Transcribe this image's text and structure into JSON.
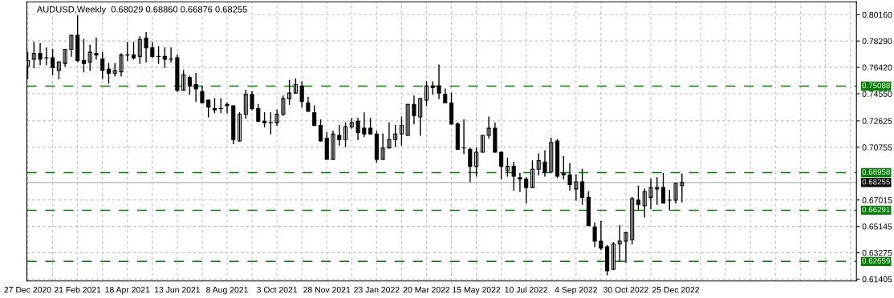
{
  "chart_data": {
    "type": "candlestick",
    "title": "AUDUSD,Weekly  0.68029 0.68860 0.66876 0.68255",
    "x": [
      "2020-12-27",
      "2021-01-03",
      "2021-01-10",
      "2021-01-17",
      "2021-01-24",
      "2021-01-31",
      "2021-02-07",
      "2021-02-14",
      "2021-02-21",
      "2021-02-28",
      "2021-03-07",
      "2021-03-14",
      "2021-03-21",
      "2021-03-28",
      "2021-04-04",
      "2021-04-11",
      "2021-04-18",
      "2021-04-25",
      "2021-05-02",
      "2021-05-09",
      "2021-05-16",
      "2021-05-23",
      "2021-05-30",
      "2021-06-06",
      "2021-06-13",
      "2021-06-20",
      "2021-06-27",
      "2021-07-04",
      "2021-07-11",
      "2021-07-18",
      "2021-07-25",
      "2021-08-01",
      "2021-08-08",
      "2021-08-15",
      "2021-08-22",
      "2021-08-29",
      "2021-09-05",
      "2021-09-12",
      "2021-09-19",
      "2021-09-26",
      "2021-10-03",
      "2021-10-10",
      "2021-10-17",
      "2021-10-24",
      "2021-10-31",
      "2021-11-07",
      "2021-11-14",
      "2021-11-21",
      "2021-11-28",
      "2021-12-05",
      "2021-12-12",
      "2021-12-19",
      "2021-12-26",
      "2022-01-02",
      "2022-01-09",
      "2022-01-16",
      "2022-01-23",
      "2022-01-30",
      "2022-02-06",
      "2022-02-13",
      "2022-02-20",
      "2022-02-27",
      "2022-03-06",
      "2022-03-13",
      "2022-03-20",
      "2022-03-27",
      "2022-04-03",
      "2022-04-10",
      "2022-04-17",
      "2022-04-24",
      "2022-05-01",
      "2022-05-08",
      "2022-05-15",
      "2022-05-22",
      "2022-05-29",
      "2022-06-05",
      "2022-06-12",
      "2022-06-19",
      "2022-06-26",
      "2022-07-03",
      "2022-07-10",
      "2022-07-17",
      "2022-07-24",
      "2022-07-31",
      "2022-08-07",
      "2022-08-14",
      "2022-08-21",
      "2022-08-28",
      "2022-09-04",
      "2022-09-11",
      "2022-09-18",
      "2022-09-25",
      "2022-10-02",
      "2022-10-09",
      "2022-10-16",
      "2022-10-23",
      "2022-10-30",
      "2022-11-06",
      "2022-11-13",
      "2022-11-20",
      "2022-11-27",
      "2022-12-04",
      "2022-12-11",
      "2022-12-18",
      "2022-12-25",
      "2023-01-01"
    ],
    "ohlc": [
      [
        0.765,
        0.775,
        0.756,
        0.769
      ],
      [
        0.77,
        0.782,
        0.764,
        0.774
      ],
      [
        0.774,
        0.781,
        0.766,
        0.77
      ],
      [
        0.771,
        0.778,
        0.766,
        0.771
      ],
      [
        0.771,
        0.777,
        0.759,
        0.764
      ],
      [
        0.762,
        0.768,
        0.756,
        0.768
      ],
      [
        0.767,
        0.777,
        0.765,
        0.777
      ],
      [
        0.777,
        0.787,
        0.772,
        0.787
      ],
      [
        0.787,
        0.801,
        0.768,
        0.769
      ],
      [
        0.769,
        0.784,
        0.761,
        0.767
      ],
      [
        0.768,
        0.78,
        0.762,
        0.775
      ],
      [
        0.774,
        0.785,
        0.77,
        0.773
      ],
      [
        0.77,
        0.775,
        0.756,
        0.762
      ],
      [
        0.763,
        0.767,
        0.753,
        0.76
      ],
      [
        0.76,
        0.767,
        0.758,
        0.762
      ],
      [
        0.761,
        0.774,
        0.758,
        0.773
      ],
      [
        0.773,
        0.782,
        0.769,
        0.773
      ],
      [
        0.773,
        0.782,
        0.77,
        0.771
      ],
      [
        0.772,
        0.786,
        0.767,
        0.784
      ],
      [
        0.785,
        0.789,
        0.768,
        0.778
      ],
      [
        0.778,
        0.782,
        0.771,
        0.772
      ],
      [
        0.772,
        0.779,
        0.767,
        0.772
      ],
      [
        0.772,
        0.778,
        0.764,
        0.77
      ],
      [
        0.77,
        0.778,
        0.768,
        0.77
      ],
      [
        0.771,
        0.773,
        0.747,
        0.748
      ],
      [
        0.748,
        0.762,
        0.748,
        0.759
      ],
      [
        0.757,
        0.758,
        0.745,
        0.751
      ],
      [
        0.752,
        0.76,
        0.74,
        0.749
      ],
      [
        0.747,
        0.751,
        0.739,
        0.739
      ],
      [
        0.741,
        0.741,
        0.729,
        0.736
      ],
      [
        0.735,
        0.742,
        0.732,
        0.734
      ],
      [
        0.735,
        0.742,
        0.732,
        0.735
      ],
      [
        0.738,
        0.739,
        0.732,
        0.737
      ],
      [
        0.737,
        0.737,
        0.71,
        0.713
      ],
      [
        0.712,
        0.732,
        0.712,
        0.731
      ],
      [
        0.731,
        0.748,
        0.728,
        0.745
      ],
      [
        0.745,
        0.747,
        0.734,
        0.735
      ],
      [
        0.735,
        0.738,
        0.726,
        0.726
      ],
      [
        0.726,
        0.732,
        0.722,
        0.725
      ],
      [
        0.725,
        0.732,
        0.717,
        0.725
      ],
      [
        0.725,
        0.734,
        0.723,
        0.731
      ],
      [
        0.731,
        0.744,
        0.73,
        0.742
      ],
      [
        0.742,
        0.755,
        0.738,
        0.746
      ],
      [
        0.746,
        0.756,
        0.746,
        0.752
      ],
      [
        0.751,
        0.754,
        0.736,
        0.74
      ],
      [
        0.739,
        0.743,
        0.733,
        0.733
      ],
      [
        0.732,
        0.737,
        0.723,
        0.723
      ],
      [
        0.723,
        0.727,
        0.712,
        0.712
      ],
      [
        0.714,
        0.718,
        0.699,
        0.699
      ],
      [
        0.699,
        0.719,
        0.699,
        0.717
      ],
      [
        0.716,
        0.723,
        0.709,
        0.713
      ],
      [
        0.713,
        0.725,
        0.708,
        0.722
      ],
      [
        0.722,
        0.728,
        0.721,
        0.725
      ],
      [
        0.726,
        0.728,
        0.713,
        0.718
      ],
      [
        0.721,
        0.732,
        0.715,
        0.717
      ],
      [
        0.721,
        0.728,
        0.717,
        0.717
      ],
      [
        0.717,
        0.719,
        0.697,
        0.699
      ],
      [
        0.699,
        0.717,
        0.699,
        0.707
      ],
      [
        0.707,
        0.725,
        0.707,
        0.713
      ],
      [
        0.713,
        0.723,
        0.708,
        0.717
      ],
      [
        0.717,
        0.729,
        0.709,
        0.723
      ],
      [
        0.716,
        0.738,
        0.716,
        0.738
      ],
      [
        0.738,
        0.744,
        0.724,
        0.73
      ],
      [
        0.729,
        0.742,
        0.716,
        0.742
      ],
      [
        0.741,
        0.754,
        0.737,
        0.751
      ],
      [
        0.751,
        0.754,
        0.745,
        0.75
      ],
      [
        0.751,
        0.766,
        0.742,
        0.746
      ],
      [
        0.745,
        0.749,
        0.739,
        0.739
      ],
      [
        0.739,
        0.746,
        0.724,
        0.724
      ],
      [
        0.724,
        0.725,
        0.706,
        0.706
      ],
      [
        0.707,
        0.727,
        0.703,
        0.707
      ],
      [
        0.706,
        0.707,
        0.683,
        0.694
      ],
      [
        0.694,
        0.707,
        0.687,
        0.704
      ],
      [
        0.704,
        0.716,
        0.704,
        0.716
      ],
      [
        0.716,
        0.729,
        0.714,
        0.721
      ],
      [
        0.721,
        0.725,
        0.704,
        0.704
      ],
      [
        0.704,
        0.704,
        0.685,
        0.694
      ],
      [
        0.691,
        0.7,
        0.687,
        0.694
      ],
      [
        0.694,
        0.697,
        0.677,
        0.687
      ],
      [
        0.686,
        0.689,
        0.676,
        0.685
      ],
      [
        0.685,
        0.686,
        0.668,
        0.679
      ],
      [
        0.679,
        0.698,
        0.679,
        0.692
      ],
      [
        0.692,
        0.703,
        0.688,
        0.698
      ],
      [
        0.697,
        0.705,
        0.687,
        0.69
      ],
      [
        0.69,
        0.714,
        0.69,
        0.711
      ],
      [
        0.712,
        0.713,
        0.686,
        0.687
      ],
      [
        0.689,
        0.701,
        0.685,
        0.688
      ],
      [
        0.688,
        0.696,
        0.677,
        0.681
      ],
      [
        0.678,
        0.688,
        0.67,
        0.683
      ],
      [
        0.683,
        0.692,
        0.667,
        0.672
      ],
      [
        0.672,
        0.676,
        0.652,
        0.652
      ],
      [
        0.651,
        0.654,
        0.637,
        0.641
      ],
      [
        0.641,
        0.655,
        0.635,
        0.636
      ],
      [
        0.637,
        0.638,
        0.617,
        0.62
      ],
      [
        0.621,
        0.64,
        0.621,
        0.639
      ],
      [
        0.639,
        0.652,
        0.627,
        0.641
      ],
      [
        0.641,
        0.647,
        0.626,
        0.647
      ],
      [
        0.642,
        0.672,
        0.639,
        0.671
      ],
      [
        0.67,
        0.68,
        0.663,
        0.667
      ],
      [
        0.666,
        0.678,
        0.658,
        0.676
      ],
      [
        0.672,
        0.685,
        0.664,
        0.679
      ],
      [
        0.678,
        0.686,
        0.667,
        0.679
      ],
      [
        0.679,
        0.689,
        0.668,
        0.668
      ],
      [
        0.67,
        0.677,
        0.663,
        0.67
      ],
      [
        0.67,
        0.682,
        0.668,
        0.682
      ],
      [
        0.68029,
        0.6886,
        0.66876,
        0.68255
      ]
    ],
    "xlim": [
      "2020-12-26",
      "2023-07-16"
    ],
    "xticks": [
      {
        "value": "2020-12-27",
        "label": "27 Dec 2020"
      },
      {
        "value": "2021-01-24",
        "label": null
      },
      {
        "value": "2021-02-21",
        "label": "21 Feb 2021"
      },
      {
        "value": "2021-03-21",
        "label": null
      },
      {
        "value": "2021-04-18",
        "label": "18 Apr 2021"
      },
      {
        "value": "2021-05-16",
        "label": null
      },
      {
        "value": "2021-06-13",
        "label": "13 Jun 2021"
      },
      {
        "value": "2021-07-11",
        "label": null
      },
      {
        "value": "2021-08-08",
        "label": "8 Aug 2021"
      },
      {
        "value": "2021-09-05",
        "label": null
      },
      {
        "value": "2021-10-03",
        "label": "3 Oct 2021"
      },
      {
        "value": "2021-10-31",
        "label": null
      },
      {
        "value": "2021-11-28",
        "label": "28 Nov 2021"
      },
      {
        "value": "2021-12-26",
        "label": null
      },
      {
        "value": "2022-01-23",
        "label": "23 Jan 2022"
      },
      {
        "value": "2022-02-20",
        "label": null
      },
      {
        "value": "2022-03-20",
        "label": "20 Mar 2022"
      },
      {
        "value": "2022-04-17",
        "label": null
      },
      {
        "value": "2022-05-15",
        "label": "15 May 2022"
      },
      {
        "value": "2022-06-12",
        "label": null
      },
      {
        "value": "2022-07-10",
        "label": "10 Jul 2022"
      },
      {
        "value": "2022-08-07",
        "label": null
      },
      {
        "value": "2022-09-04",
        "label": "4 Sep 2022"
      },
      {
        "value": "2022-10-02",
        "label": null
      },
      {
        "value": "2022-10-30",
        "label": "30 Oct 2022"
      },
      {
        "value": "2022-11-27",
        "label": null
      },
      {
        "value": "2022-12-25",
        "label": "25 Dec 2022"
      },
      {
        "value": "2023-01-22",
        "label": null
      },
      {
        "value": "2023-02-19",
        "label": null
      },
      {
        "value": "2023-03-19",
        "label": null
      },
      {
        "value": "2023-04-16",
        "label": null
      },
      {
        "value": "2023-05-14",
        "label": null
      },
      {
        "value": "2023-06-11",
        "label": null
      },
      {
        "value": "2023-07-09",
        "label": null
      }
    ],
    "ylim": [
      0.6127,
      0.8107
    ],
    "yticks": [
      {
        "value": 0.8016,
        "label": "0.80160"
      },
      {
        "value": 0.7829,
        "label": "0.78290"
      },
      {
        "value": 0.7642,
        "label": "0.76420"
      },
      {
        "value": 0.7455,
        "label": "0.74550"
      },
      {
        "value": 0.72625,
        "label": "0.72625"
      },
      {
        "value": 0.70755,
        "label": "0.70755"
      },
      {
        "value": 0.67015,
        "label": "0.67015"
      },
      {
        "value": 0.65145,
        "label": "0.65145"
      },
      {
        "value": 0.63275,
        "label": "0.63275"
      },
      {
        "value": 0.61405,
        "label": "0.61405"
      }
    ],
    "ref_lines": [
      {
        "axis": "y",
        "value": 0.75088,
        "label": "0.75088",
        "color": "#008000",
        "line_style": "dashed"
      },
      {
        "axis": "y",
        "value": 0.68958,
        "label": "0.68958",
        "color": "#008000",
        "line_style": "dashed"
      },
      {
        "axis": "y",
        "value": 0.68255,
        "label": "0.68255",
        "color": "#c0c0c0",
        "line_style": "solid"
      },
      {
        "axis": "y",
        "value": 0.66291,
        "label": "0.66291",
        "color": "#008000",
        "line_style": "dashed"
      },
      {
        "axis": "y",
        "value": 0.62659,
        "label": "0.62659",
        "color": "#008000",
        "line_style": "dashed"
      }
    ],
    "grid": true,
    "legend": false
  }
}
